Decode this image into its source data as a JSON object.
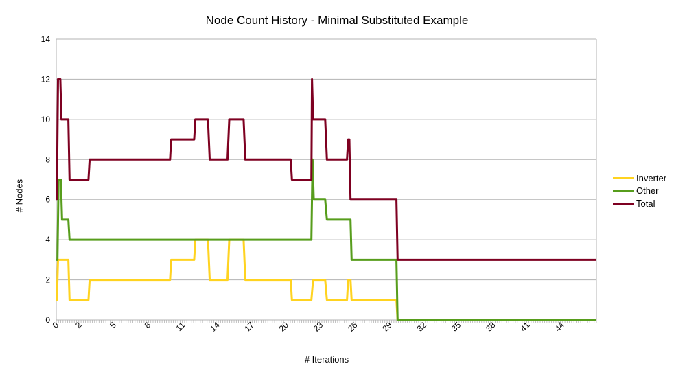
{
  "chart_data": {
    "type": "line",
    "title": "Node Count History - Minimal Substituted Example",
    "xlabel": "# Iterations",
    "ylabel": "# Nodes",
    "ylim": [
      0,
      14
    ],
    "yticks": [
      "0",
      "2",
      "4",
      "6",
      "8",
      "10",
      "12",
      "14"
    ],
    "xlim": [
      0,
      47
    ],
    "xtick_labels": [
      "0",
      "2",
      "5",
      "8",
      "11",
      "14",
      "17",
      "20",
      "23",
      "26",
      "29",
      "32",
      "35",
      "38",
      "41",
      "44"
    ],
    "grid": "horizontal",
    "legend_position": "right",
    "series": [
      {
        "name": "Inverter",
        "color": "#ffd320",
        "x": [
          0,
          0.05,
          0.15,
          1.05,
          1.15,
          2.8,
          2.9,
          9.9,
          10.0,
          12.0,
          12.1,
          13.2,
          13.35,
          14.9,
          15.05,
          16.3,
          16.45,
          20.4,
          20.5,
          22.2,
          22.35,
          23.4,
          23.55,
          25.3,
          25.4,
          25.6,
          25.7,
          29.6,
          29.7,
          47
        ],
        "y": [
          1,
          1,
          3,
          3,
          1,
          1,
          2,
          2,
          3,
          3,
          4,
          4,
          2,
          2,
          4,
          4,
          2,
          2,
          1,
          1,
          2,
          2,
          1,
          1,
          2,
          2,
          1,
          1,
          0,
          0
        ]
      },
      {
        "name": "Other",
        "color": "#579d1c",
        "x": [
          0,
          0.1,
          0.2,
          0.4,
          0.5,
          1.05,
          1.15,
          22.2,
          22.3,
          22.4,
          23.4,
          23.55,
          25.6,
          25.7,
          29.6,
          29.7,
          47
        ],
        "y": [
          3,
          3,
          7,
          7,
          5,
          5,
          4,
          4,
          8,
          6,
          6,
          5,
          5,
          3,
          3,
          0,
          0
        ]
      },
      {
        "name": "Total",
        "color": "#7e0021",
        "x": [
          0,
          0.05,
          0.15,
          0.35,
          0.45,
          1.05,
          1.15,
          2.8,
          2.9,
          9.9,
          10.0,
          12.0,
          12.1,
          13.2,
          13.35,
          14.9,
          15.05,
          16.3,
          16.45,
          20.4,
          20.5,
          22.2,
          22.25,
          22.35,
          23.4,
          23.55,
          25.3,
          25.4,
          25.5,
          25.6,
          29.6,
          29.7,
          47
        ],
        "y": [
          6,
          6,
          12,
          12,
          10,
          10,
          7,
          7,
          8,
          8,
          9,
          9,
          10,
          10,
          8,
          8,
          10,
          10,
          8,
          8,
          7,
          7,
          12,
          10,
          10,
          8,
          8,
          9,
          9,
          6,
          6,
          3,
          3
        ]
      }
    ]
  }
}
